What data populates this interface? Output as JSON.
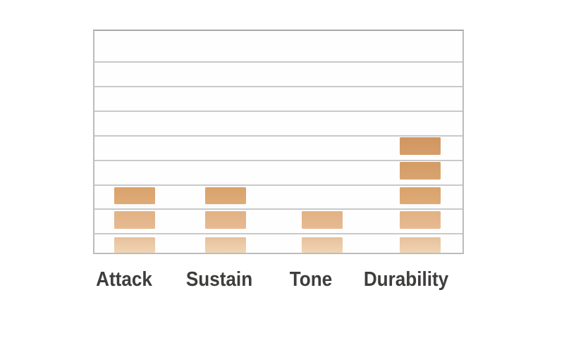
{
  "chart_data": {
    "type": "bar",
    "subtype": "segmented-stacked-blocks",
    "title": "",
    "xlabel": "",
    "ylabel": "",
    "legend": "none",
    "grid": true,
    "gridline_count": 8,
    "ylim": [
      0,
      9
    ],
    "categories": [
      "Attack",
      "Sustain",
      "Tone",
      "Durability"
    ],
    "values": [
      3,
      3,
      2,
      5
    ],
    "series": [
      {
        "name": "rating-blocks",
        "values": [
          3,
          3,
          2,
          5
        ]
      }
    ],
    "colors": {
      "grid_color": "#c9c9c9",
      "border_color": "#bcbcbc",
      "border_top_color": "#a9a9a9",
      "plot_background": "#fefefe",
      "page_background": "#ffffff",
      "label_color": "#3e3d3c"
    },
    "segment_colors_bottom_to_top": [
      {
        "row": 1,
        "color": "#e7c09b",
        "color_bottom": "#f0d4b3"
      },
      {
        "row": 2,
        "color": "#e2b185",
        "color_bottom": "#e7ba92"
      },
      {
        "row": 3,
        "color": "#d9a26b",
        "color_bottom": "#deab77"
      },
      {
        "row": 4,
        "color": "#d49c66",
        "color_bottom": "#d8a470"
      },
      {
        "row": 5,
        "color": "#d0965f",
        "color_bottom": "#d59e6a"
      }
    ]
  }
}
